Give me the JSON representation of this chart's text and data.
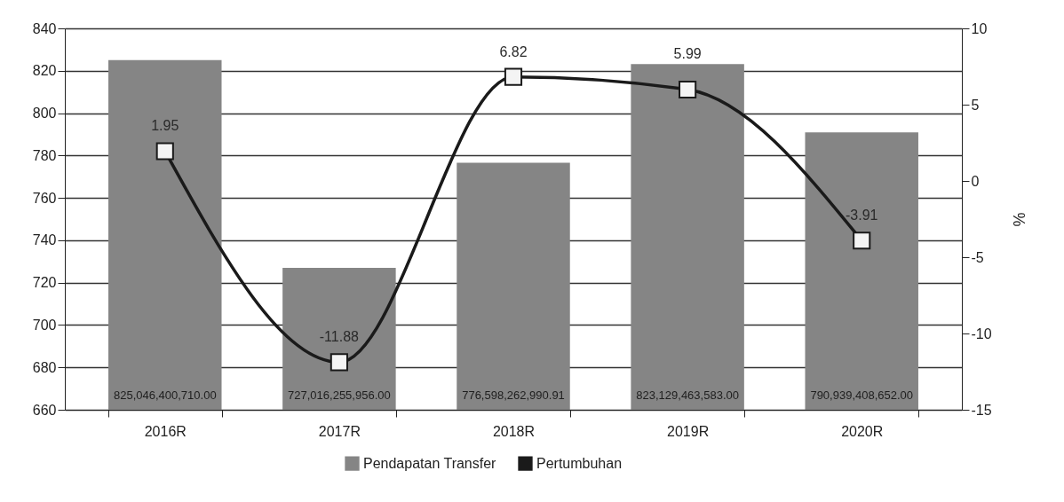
{
  "chart_data": {
    "type": "bar",
    "categories": [
      "2016R",
      "2017R",
      "2018R",
      "2019R",
      "2020R"
    ],
    "ylim": [
      660,
      840
    ],
    "yticks": [
      660,
      680,
      700,
      720,
      740,
      760,
      780,
      800,
      820,
      840
    ],
    "y2lim": [
      -15,
      10
    ],
    "y2ticks": [
      -15,
      -10,
      -5,
      0,
      5,
      10
    ],
    "y2label": "%",
    "grid": "y",
    "legend": "bottom",
    "annotations": [
      "825,046,400,710.00",
      "727,016,255,956.00",
      "776,598,262,990.91",
      "823,129,463,583.00",
      "790,939,408,652.00"
    ],
    "series": [
      {
        "name": "Pendapatan Transfer",
        "color": "#858585",
        "values": [
          825.0,
          727.0,
          776.6,
          823.1,
          790.9
        ]
      },
      {
        "name": "Pertumbuhan",
        "type": "line",
        "axis": "y2",
        "color": "#1a1a1a",
        "marker": "square",
        "values": [
          1.95,
          -11.88,
          6.82,
          5.99,
          -3.91
        ],
        "value_labels": [
          "1.95",
          "-11.88",
          "6.82",
          "5.99",
          "-3.91"
        ]
      }
    ]
  }
}
